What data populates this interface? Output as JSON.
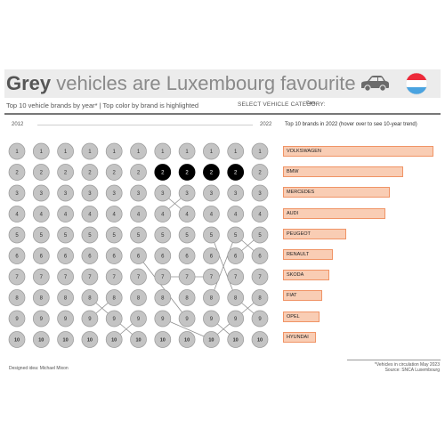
{
  "header": {
    "title_highlight": "Grey",
    "title_rest": " vehicles are Luxembourg favourite",
    "car_icon": "car-icon",
    "flag_icon": "luxembourg-flag-icon",
    "subtitle": "Top 10 vehicle brands by year* | Top color by brand is highlighted",
    "select_label": "SELECT VEHICLE CATEGORY:",
    "select_value": "Cars"
  },
  "colors": {
    "grey_circle": "#c4c4c4",
    "highlight_circle": "#000000",
    "bar_fill": "#f9cdb4",
    "bar_border": "#f09466"
  },
  "chart_data": [
    {
      "type": "bump",
      "x": [
        "2012",
        "2013",
        "2014",
        "2015",
        "2016",
        "2017",
        "2018",
        "2019",
        "2020",
        "2021",
        "2022"
      ],
      "x_start_label": "2012",
      "x_end_label": "2022",
      "ranks": [
        1,
        2,
        3,
        4,
        5,
        6,
        7,
        8,
        9,
        10
      ],
      "highlighted": [
        {
          "year": "2018",
          "rank": 2
        },
        {
          "year": "2019",
          "rank": 2
        },
        {
          "year": "2020",
          "rank": 2
        },
        {
          "year": "2021",
          "rank": 2
        }
      ]
    },
    {
      "type": "bar",
      "title": "Top 10 brands in 2022 (hover over to see 10-year trend)",
      "categories": [
        "VOLKSWAGEN",
        "BMW",
        "MERCEDES",
        "AUDI",
        "PEUGEOT",
        "RENAULT",
        "SKODA",
        "FIAT",
        "OPEL",
        "HYUNDAI"
      ],
      "values": [
        100,
        80,
        71,
        68,
        42,
        33,
        31,
        26,
        24,
        22
      ]
    }
  ],
  "footer": {
    "credit": "Designed idea: Michael Mixon",
    "note": "*Vehicles in circulation May 2023",
    "source": "Source: SNCA Luxembourg"
  }
}
